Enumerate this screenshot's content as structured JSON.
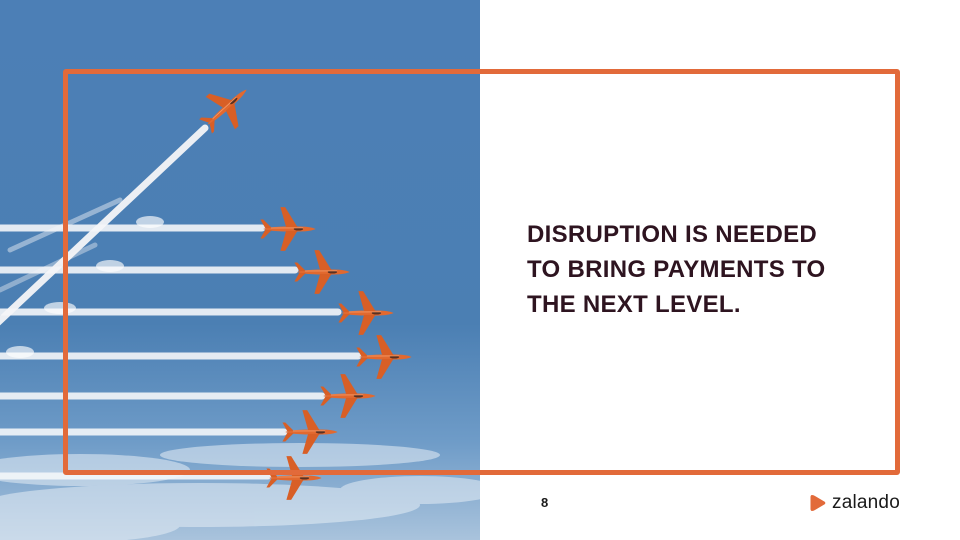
{
  "slide": {
    "headline": [
      "DISRUPTION IS NEEDED",
      "TO BRING PAYMENTS TO",
      "THE NEXT LEVEL."
    ],
    "page_number": "8",
    "brand": {
      "name": "zalando",
      "icon": "zalando-logo-icon",
      "accent_color": "#e26a3a"
    },
    "photo": {
      "icon": "jet-formation-image",
      "sky_color": "#4a7fb5",
      "jet_color": "#e2692f"
    },
    "text_color": "#2e1420"
  }
}
